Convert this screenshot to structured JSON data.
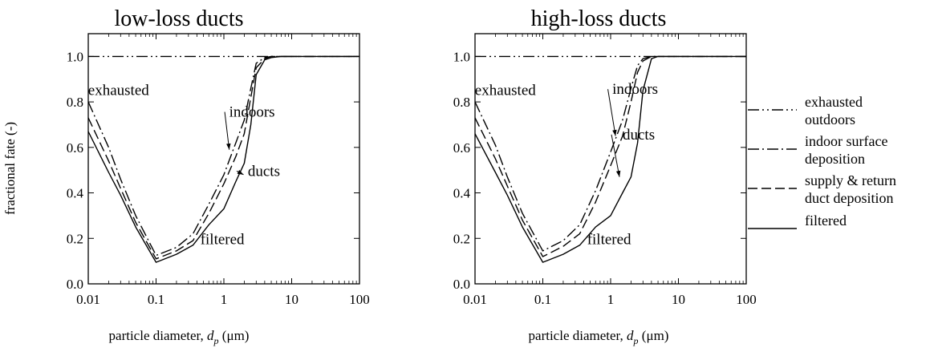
{
  "chart_data": [
    {
      "type": "line",
      "title": "low-loss ducts",
      "ylabel": "fractional fate (-)",
      "xlabel_prefix": "particle diameter, ",
      "xlabel_var": "d",
      "xlabel_sub": "p",
      "xlabel_unit": " (μm)",
      "x_scale": "log",
      "xlim": [
        0.01,
        100
      ],
      "ylim": [
        0,
        1.1
      ],
      "x_ticks": [
        0.01,
        0.1,
        1,
        10,
        100
      ],
      "x_tick_labels": [
        "0.01",
        "0.1",
        "1",
        "10",
        "100"
      ],
      "y_ticks": [
        0,
        0.2,
        0.4,
        0.6,
        0.8,
        1.0
      ],
      "y_tick_labels": [
        "0.0",
        "0.2",
        "0.4",
        "0.6",
        "0.8",
        "1.0"
      ],
      "x": [
        0.01,
        0.02,
        0.03,
        0.05,
        0.1,
        0.2,
        0.35,
        0.6,
        1.0,
        1.5,
        2.0,
        2.5,
        3.0,
        4.0,
        5.0,
        7.0,
        10,
        20,
        50,
        100
      ],
      "series": [
        {
          "name": "exhausted outdoors",
          "style": "dash-dot-dot",
          "values": [
            1.0,
            1.0,
            1.0,
            1.0,
            1.0,
            1.0,
            1.0,
            1.0,
            1.0,
            1.0,
            1.0,
            1.0,
            1.0,
            1.0,
            1.0,
            1.0,
            1.0,
            1.0,
            1.0,
            1.0
          ]
        },
        {
          "name": "indoor surface deposition",
          "style": "dash-dot",
          "values": [
            0.8,
            0.6,
            0.46,
            0.3,
            0.125,
            0.16,
            0.22,
            0.35,
            0.48,
            0.62,
            0.72,
            0.86,
            0.97,
            0.995,
            1.0,
            1.0,
            1.0,
            1.0,
            1.0,
            1.0
          ]
        },
        {
          "name": "supply & return duct deposition",
          "style": "dash",
          "values": [
            0.73,
            0.54,
            0.42,
            0.27,
            0.11,
            0.145,
            0.19,
            0.31,
            0.44,
            0.56,
            0.66,
            0.82,
            0.95,
            0.99,
            1.0,
            1.0,
            1.0,
            1.0,
            1.0,
            1.0
          ]
        },
        {
          "name": "filtered",
          "style": "solid",
          "values": [
            0.67,
            0.49,
            0.39,
            0.25,
            0.095,
            0.13,
            0.17,
            0.26,
            0.33,
            0.45,
            0.53,
            0.7,
            0.92,
            0.985,
            0.995,
            1.0,
            1.0,
            1.0,
            1.0,
            1.0
          ]
        }
      ],
      "annotations": [
        {
          "text": "exhausted",
          "x": 0.028,
          "y": 0.83
        },
        {
          "text": "indoors",
          "x": 2.6,
          "y": 0.735,
          "arrow_to": [
            1.2,
            0.59
          ]
        },
        {
          "text": "ducts",
          "x": 3.9,
          "y": 0.475,
          "arrow_to": [
            1.95,
            0.48
          ]
        },
        {
          "text": "filtered",
          "x": 0.95,
          "y": 0.175
        }
      ]
    },
    {
      "type": "line",
      "title": "high-loss ducts",
      "ylabel": "",
      "xlabel_prefix": "particle diameter, ",
      "xlabel_var": "d",
      "xlabel_sub": "p",
      "xlabel_unit": " (μm)",
      "x_scale": "log",
      "xlim": [
        0.01,
        100
      ],
      "ylim": [
        0,
        1.1
      ],
      "x_ticks": [
        0.01,
        0.1,
        1,
        10,
        100
      ],
      "x_tick_labels": [
        "0.01",
        "0.1",
        "1",
        "10",
        "100"
      ],
      "y_ticks": [
        0,
        0.2,
        0.4,
        0.6,
        0.8,
        1.0
      ],
      "y_tick_labels": [
        "0.0",
        "0.2",
        "0.4",
        "0.6",
        "0.8",
        "1.0"
      ],
      "x": [
        0.01,
        0.02,
        0.03,
        0.05,
        0.1,
        0.2,
        0.35,
        0.6,
        1.0,
        1.5,
        2.0,
        2.5,
        3.0,
        4.0,
        5.0,
        7.0,
        10,
        20,
        50,
        100
      ],
      "series": [
        {
          "name": "exhausted outdoors",
          "style": "dash-dot-dot",
          "values": [
            1.0,
            1.0,
            1.0,
            1.0,
            1.0,
            1.0,
            1.0,
            1.0,
            1.0,
            1.0,
            1.0,
            1.0,
            1.0,
            1.0,
            1.0,
            1.0,
            1.0,
            1.0,
            1.0,
            1.0
          ]
        },
        {
          "name": "indoor surface deposition",
          "style": "dash-dot",
          "values": [
            0.8,
            0.61,
            0.47,
            0.31,
            0.145,
            0.19,
            0.26,
            0.41,
            0.58,
            0.72,
            0.86,
            0.96,
            0.99,
            1.0,
            1.0,
            1.0,
            1.0,
            1.0,
            1.0,
            1.0
          ]
        },
        {
          "name": "supply & return duct deposition",
          "style": "dash",
          "values": [
            0.73,
            0.55,
            0.43,
            0.28,
            0.12,
            0.165,
            0.22,
            0.36,
            0.52,
            0.65,
            0.8,
            0.93,
            0.98,
            1.0,
            1.0,
            1.0,
            1.0,
            1.0,
            1.0,
            1.0
          ]
        },
        {
          "name": "filtered",
          "style": "solid",
          "values": [
            0.66,
            0.49,
            0.39,
            0.25,
            0.095,
            0.13,
            0.17,
            0.25,
            0.3,
            0.4,
            0.47,
            0.62,
            0.85,
            0.99,
            1.0,
            1.0,
            1.0,
            1.0,
            1.0,
            1.0
          ]
        }
      ],
      "annotations": [
        {
          "text": "exhausted",
          "x": 0.028,
          "y": 0.83
        },
        {
          "text": "indoors",
          "x": 2.3,
          "y": 0.835,
          "arrow_to": [
            1.18,
            0.65
          ]
        },
        {
          "text": "ducts",
          "x": 2.6,
          "y": 0.635,
          "arrow_to": [
            1.35,
            0.47
          ]
        },
        {
          "text": "filtered",
          "x": 0.95,
          "y": 0.175
        }
      ]
    }
  ],
  "legend": {
    "placement": "right",
    "items": [
      {
        "style": "dash-dot-dot",
        "lines": [
          "exhausted",
          "outdoors"
        ]
      },
      {
        "style": "dash-dot",
        "lines": [
          "indoor surface",
          "deposition"
        ]
      },
      {
        "style": "dash",
        "lines": [
          "supply & return",
          "duct deposition"
        ]
      },
      {
        "style": "solid",
        "lines": [
          "filtered"
        ]
      }
    ]
  }
}
